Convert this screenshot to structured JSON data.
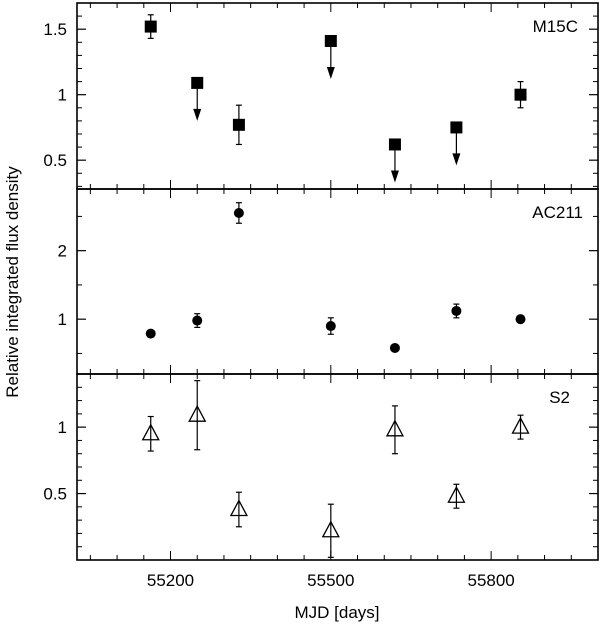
{
  "chart_data": {
    "type": "scatter",
    "xlabel": "MJD [days]",
    "ylabel": "Relative integrated flux density",
    "xlim": [
      55025,
      56000
    ],
    "x_ticks": [
      55200,
      55500,
      55800
    ],
    "x_tick_labels": [
      "55200",
      "55500",
      "55800"
    ],
    "x_minor_ticks": [
      55050,
      55100,
      55150,
      55200,
      55250,
      55300,
      55350,
      55400,
      55450,
      55500,
      55550,
      55600,
      55650,
      55700,
      55750,
      55800,
      55850,
      55900,
      55950
    ],
    "panels": [
      {
        "name": "M15C",
        "marker": "filled-square",
        "ylim": [
          0.28,
          1.7
        ],
        "y_ticks": [
          0.5,
          1,
          1.5
        ],
        "y_tick_labels": [
          "0.5",
          "1",
          "1.5"
        ],
        "y_minor_ticks": [
          0.3,
          0.4,
          0.6,
          0.7,
          0.8,
          0.9,
          1.1,
          1.2,
          1.3,
          1.4,
          1.6
        ],
        "points": [
          {
            "x": 55163,
            "y": 1.52,
            "err": 0.09,
            "upper_limit": false
          },
          {
            "x": 55250,
            "y": 1.09,
            "err": 0,
            "upper_limit": true
          },
          {
            "x": 55328,
            "y": 0.77,
            "err": 0.15,
            "upper_limit": false
          },
          {
            "x": 55500,
            "y": 1.41,
            "err": 0,
            "upper_limit": true
          },
          {
            "x": 55620,
            "y": 0.62,
            "err": 0,
            "upper_limit": true
          },
          {
            "x": 55735,
            "y": 0.75,
            "err": 0,
            "upper_limit": true
          },
          {
            "x": 55855,
            "y": 1.0,
            "err": 0.1,
            "upper_limit": false
          }
        ]
      },
      {
        "name": "AC211",
        "marker": "filled-circle",
        "ylim": [
          0.2,
          2.9
        ],
        "y_ticks": [
          1,
          2
        ],
        "y_tick_labels": [
          "1",
          "2"
        ],
        "y_minor_ticks": [
          0.5,
          1.5,
          2.5
        ],
        "points": [
          {
            "x": 55163,
            "y": 0.79,
            "err": 0.04,
            "upper_limit": false
          },
          {
            "x": 55250,
            "y": 0.98,
            "err": 0.1,
            "upper_limit": false
          },
          {
            "x": 55328,
            "y": 2.55,
            "err": 0.15,
            "upper_limit": false
          },
          {
            "x": 55500,
            "y": 0.9,
            "err": 0.12,
            "upper_limit": false
          },
          {
            "x": 55620,
            "y": 0.58,
            "err": 0.03,
            "upper_limit": false
          },
          {
            "x": 55735,
            "y": 1.12,
            "err": 0.1,
            "upper_limit": false
          },
          {
            "x": 55855,
            "y": 1.0,
            "err": 0.03,
            "upper_limit": false
          }
        ]
      },
      {
        "name": "S2",
        "marker": "open-triangle",
        "ylim": [
          0.0,
          1.4
        ],
        "y_ticks": [
          0.5,
          1
        ],
        "y_tick_labels": [
          "0.5",
          "1"
        ],
        "y_minor_ticks": [
          0.1,
          0.2,
          0.3,
          0.4,
          0.6,
          0.7,
          0.8,
          0.9,
          1.1,
          1.2,
          1.3
        ],
        "points": [
          {
            "x": 55163,
            "y": 0.95,
            "err": 0.13,
            "upper_limit": false
          },
          {
            "x": 55250,
            "y": 1.09,
            "err": 0.26,
            "upper_limit": false
          },
          {
            "x": 55328,
            "y": 0.38,
            "err": 0.13,
            "upper_limit": false
          },
          {
            "x": 55500,
            "y": 0.22,
            "err": 0.2,
            "upper_limit": false
          },
          {
            "x": 55620,
            "y": 0.98,
            "err": 0.18,
            "upper_limit": false
          },
          {
            "x": 55735,
            "y": 0.48,
            "err": 0.09,
            "upper_limit": false
          },
          {
            "x": 55855,
            "y": 1.0,
            "err": 0.09,
            "upper_limit": false
          }
        ]
      }
    ]
  }
}
